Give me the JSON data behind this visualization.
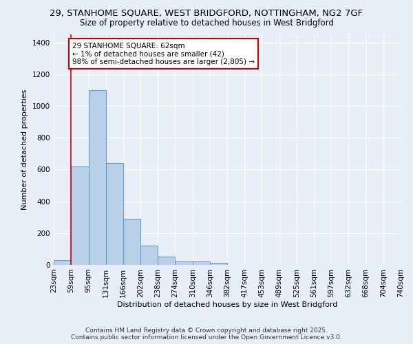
{
  "title_line1": "29, STANHOME SQUARE, WEST BRIDGFORD, NOTTINGHAM, NG2 7GF",
  "title_line2": "Size of property relative to detached houses in West Bridgford",
  "xlabel": "Distribution of detached houses by size in West Bridgford",
  "ylabel": "Number of detached properties",
  "bin_edges": [
    23,
    59,
    95,
    131,
    166,
    202,
    238,
    274,
    310,
    346,
    382,
    417,
    453,
    489,
    525,
    561,
    597,
    632,
    668,
    704,
    740
  ],
  "bar_heights": [
    30,
    620,
    1100,
    640,
    290,
    120,
    50,
    20,
    20,
    15,
    0,
    0,
    0,
    0,
    0,
    0,
    0,
    0,
    0,
    0
  ],
  "bar_color": "#b8d0e8",
  "bar_edge_color": "#5a96c8",
  "bg_color": "#e8eef8",
  "grid_color": "#ffffff",
  "property_line_x": 59,
  "property_line_color": "#cc0000",
  "annotation_text": "29 STANHOME SQUARE: 62sqm\n← 1% of detached houses are smaller (42)\n98% of semi-detached houses are larger (2,805) →",
  "annotation_box_color": "#ffffff",
  "annotation_box_edge": "#cc0000",
  "ylim": [
    0,
    1450
  ],
  "yticks": [
    0,
    200,
    400,
    600,
    800,
    1000,
    1200,
    1400
  ],
  "footer_line1": "Contains HM Land Registry data © Crown copyright and database right 2025.",
  "footer_line2": "Contains public sector information licensed under the Open Government Licence v3.0.",
  "title_fontsize": 9.5,
  "subtitle_fontsize": 8.5,
  "axis_label_fontsize": 8,
  "tick_fontsize": 7.5,
  "annotation_fontsize": 7.5,
  "footer_fontsize": 6.5
}
